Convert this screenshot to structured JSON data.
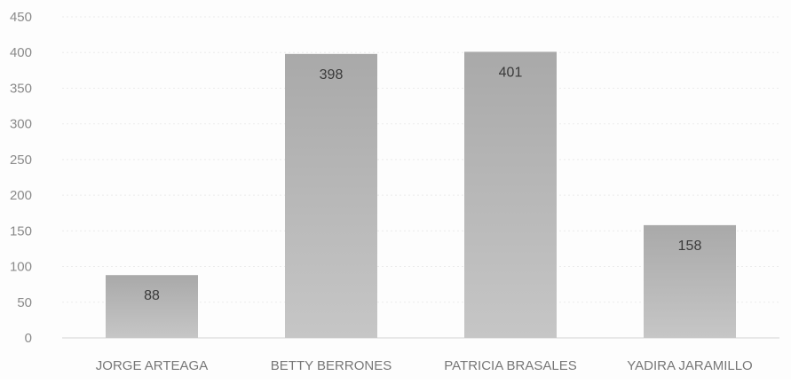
{
  "chart_data": {
    "type": "bar",
    "categories": [
      "JORGE ARTEAGA",
      "BETTY BERRONES",
      "PATRICIA BRASALES",
      "YADIRA JARAMILLO"
    ],
    "values": [
      88,
      398,
      401,
      158
    ],
    "data_labels": [
      "88",
      "398",
      "401",
      "158"
    ],
    "y_ticks": [
      0,
      50,
      100,
      150,
      200,
      250,
      300,
      350,
      400,
      450
    ],
    "ylim": [
      0,
      450
    ],
    "title": "",
    "xlabel": "",
    "ylabel": "",
    "grid": true,
    "legend": "none",
    "bar_color": "#b3b3b3",
    "bar_color_light": "#cccccc"
  }
}
